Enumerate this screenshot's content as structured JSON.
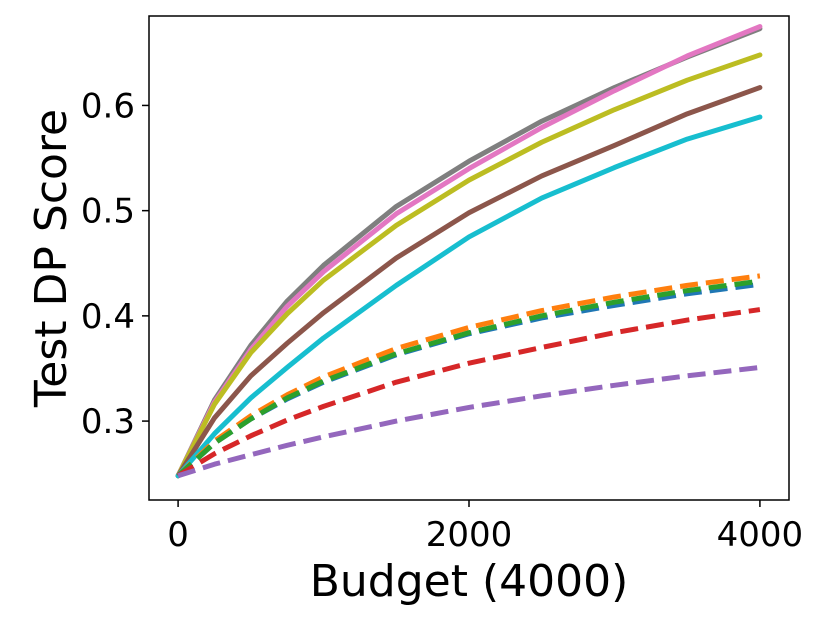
{
  "chart_data": {
    "type": "line",
    "title": "",
    "xlabel": "Budget (4000)",
    "ylabel": "Test DP Score",
    "xlim": [
      -200,
      4200
    ],
    "ylim": [
      0.225,
      0.685
    ],
    "x_ticks": [
      0,
      2000,
      4000
    ],
    "x_tick_labels": [
      "0",
      "2000",
      "4000"
    ],
    "y_ticks": [
      0.3,
      0.4,
      0.5,
      0.6
    ],
    "y_tick_labels": [
      "0.3",
      "0.4",
      "0.5",
      "0.6"
    ],
    "grid": false,
    "legend": "none",
    "x": [
      0,
      250,
      500,
      750,
      1000,
      1500,
      2000,
      2500,
      3000,
      3500,
      4000
    ],
    "series": [
      {
        "color": "#7f7f7f",
        "dash": false,
        "values": [
          0.248,
          0.32,
          0.372,
          0.414,
          0.448,
          0.504,
          0.547,
          0.585,
          0.617,
          0.646,
          0.673
        ]
      },
      {
        "color": "#e377c2",
        "dash": false,
        "values": [
          0.248,
          0.318,
          0.368,
          0.409,
          0.442,
          0.497,
          0.54,
          0.579,
          0.614,
          0.647,
          0.675
        ]
      },
      {
        "color": "#bcbd22",
        "dash": false,
        "values": [
          0.248,
          0.316,
          0.365,
          0.402,
          0.434,
          0.486,
          0.529,
          0.565,
          0.596,
          0.624,
          0.648
        ]
      },
      {
        "color": "#8c564b",
        "dash": false,
        "values": [
          0.248,
          0.303,
          0.343,
          0.374,
          0.403,
          0.455,
          0.498,
          0.533,
          0.562,
          0.592,
          0.617
        ]
      },
      {
        "color": "#17becf",
        "dash": false,
        "values": [
          0.248,
          0.288,
          0.322,
          0.351,
          0.379,
          0.429,
          0.475,
          0.512,
          0.541,
          0.568,
          0.589
        ]
      },
      {
        "color": "#ff7f0e",
        "dash": true,
        "values": [
          0.248,
          0.281,
          0.305,
          0.325,
          0.342,
          0.369,
          0.389,
          0.405,
          0.418,
          0.429,
          0.438
        ]
      },
      {
        "color": "#1f77b4",
        "dash": true,
        "values": [
          0.248,
          0.279,
          0.302,
          0.321,
          0.337,
          0.363,
          0.383,
          0.398,
          0.41,
          0.421,
          0.43
        ]
      },
      {
        "color": "#2ca02c",
        "dash": true,
        "values": [
          0.248,
          0.279,
          0.302,
          0.322,
          0.338,
          0.364,
          0.384,
          0.4,
          0.413,
          0.424,
          0.433
        ]
      },
      {
        "color": "#d62728",
        "dash": true,
        "values": [
          0.248,
          0.269,
          0.286,
          0.301,
          0.314,
          0.337,
          0.355,
          0.37,
          0.384,
          0.396,
          0.406
        ]
      },
      {
        "color": "#9467bd",
        "dash": true,
        "values": [
          0.248,
          0.259,
          0.268,
          0.277,
          0.285,
          0.3,
          0.313,
          0.324,
          0.334,
          0.343,
          0.351
        ]
      }
    ]
  }
}
